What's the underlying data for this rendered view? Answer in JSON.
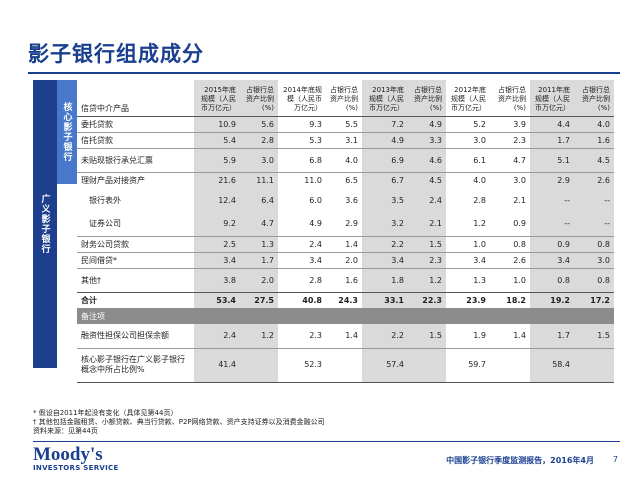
{
  "title": "影子银行组成成分",
  "side_labels": {
    "outer": "广义影子银行",
    "inner": "核心影子银行"
  },
  "table": {
    "first_header": "信贷中介产品",
    "columns": [
      "2015年底规模（人民币万亿元）",
      "占银行总资产比例(%)",
      "2014年底规模（人民币万亿元）",
      "占银行总资产比例(%)",
      "2013年底规模（人民币万亿元）",
      "占银行总资产比例(%)",
      "2012年底规模（人民币万亿元）",
      "占银行总资产比例(%)",
      "2011年底规模（人民币万亿元）",
      "占银行总资产比例(%)"
    ],
    "rows": [
      {
        "label": "委托贷款",
        "values": [
          "10.9",
          "5.6",
          "9.3",
          "5.5",
          "7.2",
          "4.9",
          "5.2",
          "3.9",
          "4.4",
          "4.0"
        ]
      },
      {
        "label": "信托贷款",
        "values": [
          "5.4",
          "2.8",
          "5.3",
          "3.1",
          "4.9",
          "3.3",
          "3.0",
          "2.3",
          "1.7",
          "1.6"
        ]
      },
      {
        "label": "未贴现银行承兑汇票",
        "values": [
          "5.9",
          "3.0",
          "6.8",
          "4.0",
          "6.9",
          "4.6",
          "6.1",
          "4.7",
          "5.1",
          "4.5"
        ]
      },
      {
        "label": "理财产品对接资产",
        "values": [
          "21.6",
          "11.1",
          "11.0",
          "6.5",
          "6.7",
          "4.5",
          "4.0",
          "3.0",
          "2.9",
          "2.6"
        ]
      },
      {
        "label": "银行表外",
        "values": [
          "12.4",
          "6.4",
          "6.0",
          "3.6",
          "3.5",
          "2.4",
          "2.8",
          "2.1",
          "--",
          "--"
        ]
      },
      {
        "label": "证券公司",
        "values": [
          "9.2",
          "4.7",
          "4.9",
          "2.9",
          "3.2",
          "2.1",
          "1.2",
          "0.9",
          "--",
          "--"
        ]
      },
      {
        "label": "财务公司贷款",
        "values": [
          "2.5",
          "1.3",
          "2.4",
          "1.4",
          "2.2",
          "1.5",
          "1.0",
          "0.8",
          "0.9",
          "0.8"
        ]
      },
      {
        "label": "民间借贷*",
        "values": [
          "3.4",
          "1.7",
          "3.4",
          "2.0",
          "3.4",
          "2.3",
          "3.4",
          "2.6",
          "3.4",
          "3.0"
        ]
      },
      {
        "label": "其他†",
        "values": [
          "3.8",
          "2.0",
          "2.8",
          "1.6",
          "1.8",
          "1.2",
          "1.3",
          "1.0",
          "0.8",
          "0.8"
        ]
      }
    ],
    "total": {
      "label": "合计",
      "values": [
        "53.4",
        "27.5",
        "40.8",
        "24.3",
        "33.1",
        "22.3",
        "23.9",
        "18.2",
        "19.2",
        "17.2"
      ]
    },
    "memo_label": "备注项",
    "guarantee": {
      "label": "融资性担保公司担保余额",
      "values": [
        "2.4",
        "1.2",
        "2.3",
        "1.4",
        "2.2",
        "1.5",
        "1.9",
        "1.4",
        "1.7",
        "1.5"
      ]
    },
    "core_share": {
      "label_line1": "核心影子银行在广义影子银行",
      "label_line2": "概念中所占比例%",
      "values": [
        "41.4",
        "52.3",
        "57.4",
        "59.7",
        "58.4"
      ]
    }
  },
  "footnotes": [
    "* 假设自2011年起没有变化（具体见第44页）",
    "† 其他包括金融租赁、小额贷款、典当行贷款、P2P网络贷款、资产支持证券以及消费金融公司",
    "资料来源：见第44页"
  ],
  "logo": {
    "name": "Moody's",
    "sub": "INVESTORS SERVICE"
  },
  "footer_text": "中国影子银行季度监测报告，2016年4月",
  "page_number": "7",
  "colors": {
    "brand_blue": "#1a3f8f",
    "inner_blue": "#4878c9",
    "shade": "#dadada",
    "memo_gray": "#8c8c8c"
  }
}
